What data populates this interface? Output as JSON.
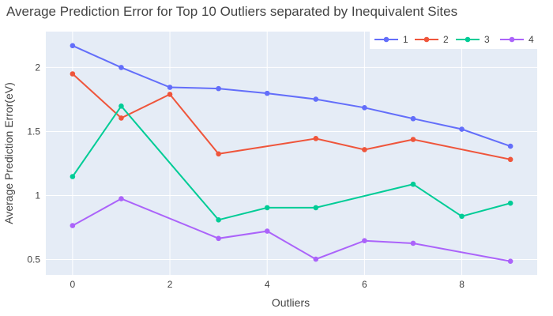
{
  "chart_data": {
    "type": "line",
    "title": "Average Prediction Error for Top 10 Outliers separated by Inequivalent Sites",
    "xlabel": "Outliers",
    "ylabel": "Average Prediction Error(eV)",
    "x": [
      0,
      1,
      2,
      3,
      4,
      5,
      6,
      7,
      8,
      9
    ],
    "xlim": [
      -0.55,
      9.55
    ],
    "ylim": [
      0.38,
      2.28
    ],
    "xticks": [
      0,
      2,
      4,
      6,
      8
    ],
    "yticks": [
      0.5,
      1,
      1.5,
      2
    ],
    "ytick_labels": [
      "0.5",
      "1",
      "1.5",
      "2"
    ],
    "grid": true,
    "legend_position": "top-right",
    "series": [
      {
        "name": "1",
        "color": "#636efa",
        "values": [
          2.17,
          2.0,
          1.845,
          1.835,
          1.798,
          1.752,
          1.686,
          1.6,
          1.518,
          1.385
        ]
      },
      {
        "name": "2",
        "color": "#ef553b",
        "values": [
          1.95,
          1.605,
          1.79,
          1.325,
          null,
          1.445,
          1.358,
          1.438,
          null,
          1.282
        ]
      },
      {
        "name": "3",
        "color": "#00cc96",
        "values": [
          1.148,
          1.698,
          null,
          0.81,
          0.905,
          0.905,
          null,
          1.088,
          0.838,
          0.94
        ]
      },
      {
        "name": "4",
        "color": "#ab63fa",
        "values": [
          0.765,
          0.975,
          null,
          0.665,
          0.722,
          0.503,
          0.647,
          0.627,
          null,
          0.487
        ]
      }
    ]
  }
}
